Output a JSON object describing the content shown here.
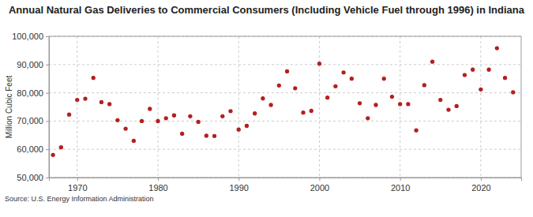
{
  "chart_data": {
    "type": "scatter",
    "title": "Annual Natural Gas Deliveries to Commercial Consumers (Including Vehicle Fuel through 1996) in Indiana",
    "y_label": "Million Cubic Feet",
    "source": "Source: U.S. Energy Information Administration",
    "x": [
      1967,
      1968,
      1969,
      1970,
      1971,
      1972,
      1973,
      1974,
      1975,
      1976,
      1977,
      1978,
      1979,
      1980,
      1981,
      1982,
      1983,
      1984,
      1985,
      1986,
      1987,
      1988,
      1989,
      1990,
      1991,
      1992,
      1993,
      1994,
      1995,
      1996,
      1997,
      1998,
      1999,
      2000,
      2001,
      2002,
      2003,
      2004,
      2005,
      2006,
      2007,
      2008,
      2009,
      2010,
      2011,
      2012,
      2013,
      2014,
      2015,
      2016,
      2017,
      2018,
      2019,
      2020,
      2021,
      2022,
      2023,
      2024
    ],
    "values": [
      58000,
      60700,
      72300,
      77500,
      77900,
      85300,
      76700,
      76000,
      70300,
      67300,
      63000,
      70000,
      74300,
      70000,
      71000,
      72000,
      65500,
      71700,
      69700,
      64800,
      64700,
      71700,
      73500,
      67000,
      68300,
      72700,
      78000,
      75700,
      82600,
      87600,
      81600,
      73000,
      73600,
      90300,
      78300,
      82300,
      87200,
      85000,
      76300,
      71000,
      75700,
      85000,
      78600,
      76000,
      76000,
      66700,
      82700,
      91000,
      77500,
      74000,
      75300,
      86300,
      88200,
      81200,
      88200,
      95800,
      85300,
      80200
    ],
    "color": "#b51f1f",
    "marker": "circle",
    "xlim": [
      1966.5,
      2025
    ],
    "xticks": [
      1970,
      1980,
      1990,
      2000,
      2010,
      2020
    ],
    "ylim": [
      50000,
      100000
    ],
    "yticks": [
      {
        "value": 50000,
        "label": "50,000"
      },
      {
        "value": 60000,
        "label": "60,000"
      },
      {
        "value": 70000,
        "label": "70,000"
      },
      {
        "value": 80000,
        "label": "80,000"
      },
      {
        "value": 90000,
        "label": "90,000"
      },
      {
        "value": 100000,
        "label": "100,000"
      }
    ],
    "grid": true
  }
}
